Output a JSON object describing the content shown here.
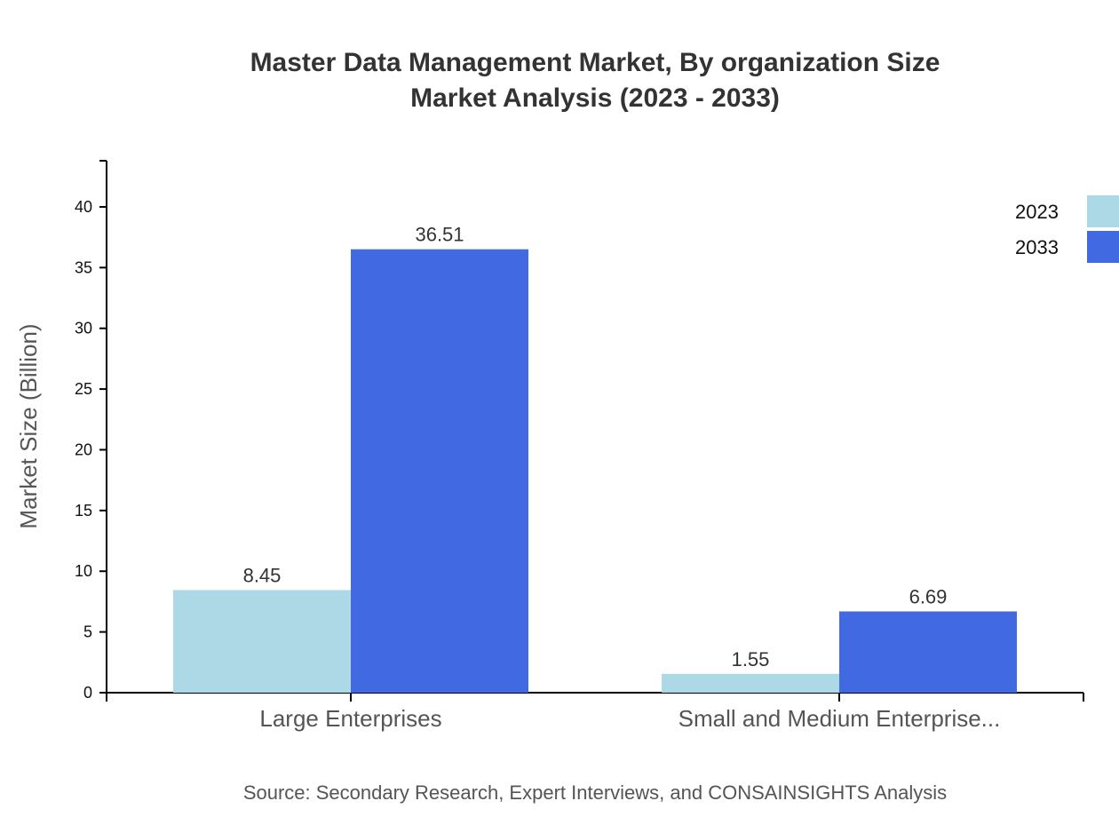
{
  "chart_data": {
    "type": "bar",
    "title": [
      "Master Data Management Market, By organization Size",
      "Market Analysis (2023 - 2033)"
    ],
    "ylabel": "Market Size (Billion)",
    "xlabel": "",
    "categories": [
      "Large Enterprises",
      "Small and Medium Enterprise..."
    ],
    "series": [
      {
        "name": "2023",
        "values": [
          8.45,
          1.55
        ],
        "color": "#add8e6"
      },
      {
        "name": "2033",
        "values": [
          36.51,
          6.69
        ],
        "color": "#4169e1"
      }
    ],
    "ylim": [
      0,
      43.8
    ],
    "yticks": [
      0,
      5,
      10,
      15,
      20,
      25,
      30,
      35,
      40
    ],
    "grid": false,
    "legend": "top-right",
    "source": "Source: Secondary Research, Expert Interviews, and CONSAINSIGHTS Analysis"
  }
}
